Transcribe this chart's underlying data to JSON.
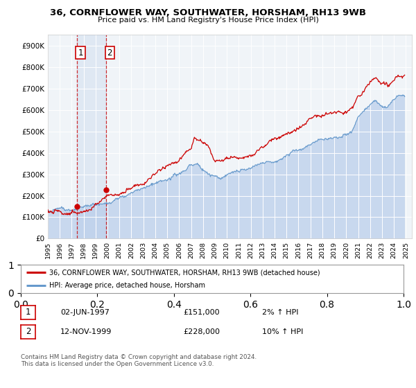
{
  "title": "36, CORNFLOWER WAY, SOUTHWATER, HORSHAM, RH13 9WB",
  "subtitle": "Price paid vs. HM Land Registry's House Price Index (HPI)",
  "sale1_date": "02-JUN-1997",
  "sale1_price": 151000,
  "sale1_label": "1",
  "sale1_hpi": "2% ↑ HPI",
  "sale2_date": "12-NOV-1999",
  "sale2_price": 228000,
  "sale2_label": "2",
  "sale2_hpi": "10% ↑ HPI",
  "legend_line1": "36, CORNFLOWER WAY, SOUTHWATER, HORSHAM, RH13 9WB (detached house)",
  "legend_line2": "HPI: Average price, detached house, Horsham",
  "footer": "Contains HM Land Registry data © Crown copyright and database right 2024.\nThis data is licensed under the Open Government Licence v3.0.",
  "property_line_color": "#cc0000",
  "hpi_line_color": "#6699cc",
  "hpi_fill_color": "#c8d8ee",
  "sale1_x_year": 1997.42,
  "sale2_x_year": 1999.87,
  "xmin": 1995.0,
  "xmax": 2025.5,
  "ymin": 0,
  "ymax": 950000,
  "yticks": [
    0,
    100000,
    200000,
    300000,
    400000,
    500000,
    600000,
    700000,
    800000,
    900000
  ],
  "ytick_labels": [
    "£0",
    "£100K",
    "£200K",
    "£300K",
    "£400K",
    "£500K",
    "£600K",
    "£700K",
    "£800K",
    "£900K"
  ],
  "xtick_years": [
    1995,
    1996,
    1997,
    1998,
    1999,
    2000,
    2001,
    2002,
    2003,
    2004,
    2005,
    2006,
    2007,
    2008,
    2009,
    2010,
    2011,
    2012,
    2013,
    2014,
    2015,
    2016,
    2017,
    2018,
    2019,
    2020,
    2021,
    2022,
    2023,
    2024,
    2025
  ],
  "bg_color": "#f0f4f8",
  "grid_color": "white"
}
